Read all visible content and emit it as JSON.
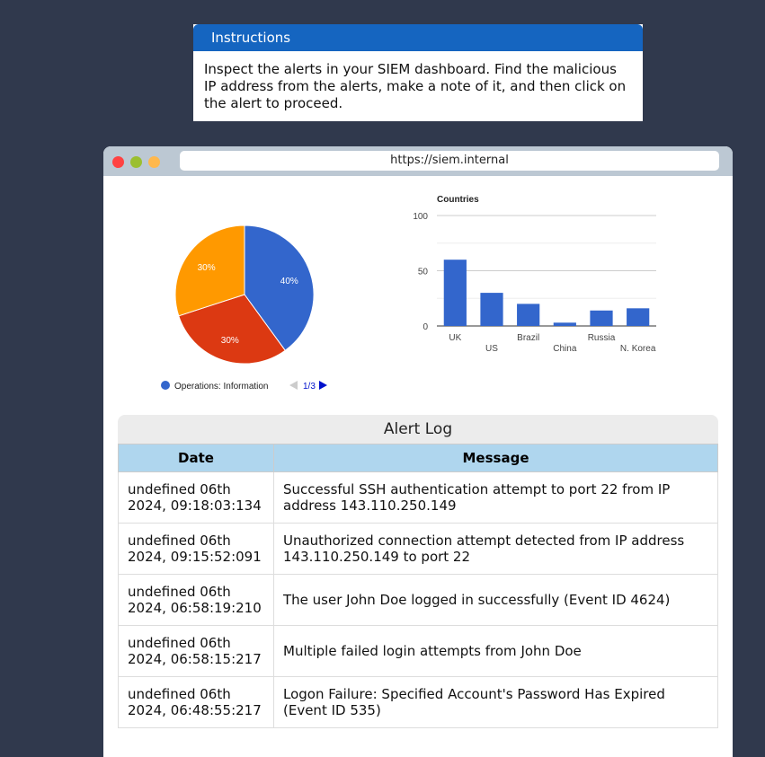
{
  "instructions": {
    "title": "Instructions",
    "text": "Inspect the alerts in your SIEM dashboard. Find the malicious IP address from the alerts, make a note of it, and then click on the alert to proceed."
  },
  "browser": {
    "url": "https://siem.internal"
  },
  "chart_data": [
    {
      "type": "pie",
      "slices": [
        {
          "label": "Operations: Information",
          "value": 40,
          "color": "#3366cc"
        },
        {
          "value": 30,
          "color": "#dc3912"
        },
        {
          "value": 30,
          "color": "#ff9900"
        }
      ],
      "data_labels": [
        "40%",
        "30%",
        "30%"
      ],
      "legend": {
        "entry": "Operations: Information",
        "page": "1/3",
        "placement": "bottom"
      }
    },
    {
      "type": "bar",
      "title": "Countries",
      "categories": [
        "UK",
        "US",
        "Brazil",
        "China",
        "Russia",
        "N. Korea"
      ],
      "values": [
        60,
        30,
        20,
        3,
        14,
        16
      ],
      "ylim": [
        0,
        100
      ],
      "yticks": [
        "0",
        "50",
        "100"
      ],
      "color": "#3366cc",
      "grid": true
    }
  ],
  "log": {
    "title": "Alert Log",
    "headers": [
      "Date",
      "Message"
    ],
    "rows": [
      {
        "date": "undefined 06th 2024, 09:18:03:134",
        "message": "Successful SSH authentication attempt to port 22 from IP address 143.110.250.149"
      },
      {
        "date": "undefined 06th 2024, 09:15:52:091",
        "message": "Unauthorized connection attempt detected from IP address 143.110.250.149 to port 22"
      },
      {
        "date": "undefined 06th 2024, 06:58:19:210",
        "message": "The user John Doe logged in successfully (Event ID 4624)"
      },
      {
        "date": "undefined 06th 2024, 06:58:15:217",
        "message": "Multiple failed login attempts from John Doe"
      },
      {
        "date": "undefined 06th 2024, 06:48:55:217",
        "message": "Logon Failure: Specified Account's Password Has Expired (Event ID 535)"
      }
    ]
  }
}
